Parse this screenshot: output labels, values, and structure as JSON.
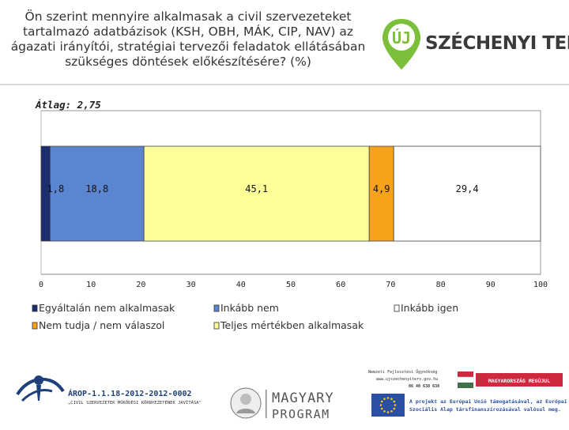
{
  "header": {
    "question": "Ön szerint mennyire alkalmasak a civil szervezeteket tartalmazó adatbázisok (KSH, OBH, MÁK, CIP, NAV) az ágazati irányítói, stratégiai tervezői feladatok ellátásában szükséges döntések előkészítésére? (%)",
    "logo_badge": "ÚJ",
    "logo_text": "SZÉCHENYI TERV"
  },
  "chart_data": {
    "type": "bar",
    "orientation": "horizontal-stacked",
    "average_label": "Átlag: 2,75",
    "x_ticks": [
      "0",
      "10",
      "20",
      "30",
      "40",
      "50",
      "60",
      "70",
      "80",
      "90",
      "100"
    ],
    "xlim": [
      0,
      100
    ],
    "series": [
      {
        "name": "Egyáltalán nem alkalmasak",
        "value": 1.8,
        "label": "1,8",
        "color": "#1a2e6e"
      },
      {
        "name": "Inkább nem",
        "value": 18.8,
        "label": "18,8",
        "color": "#5b86cf"
      },
      {
        "name": "Teljes mértékben alkalmasak",
        "value": 45.1,
        "label": "45,1",
        "color": "#ffff99"
      },
      {
        "name": "Nem tudja / nem válaszol",
        "value": 4.9,
        "label": "4,9",
        "color": "#f7a21b"
      },
      {
        "name": "Inkább igen",
        "value": 29.4,
        "label": "29,4",
        "color": "#ffffff"
      }
    ],
    "legend_placement": "bottom",
    "grid": false
  },
  "footer": {
    "arop_title": "ÁROP-1.1.18-2012-2012-0002",
    "arop_subtitle": "„CIVIL SZERVEZETEK MŰKÖDÉSI KÖRNYEZETÉNEK JAVÍTÁSA\"",
    "magyary_line1": "MAGYARY",
    "magyary_line2": "PROGRAM",
    "nfu_name": "Nemzeti Fejlesztési Ügynökség",
    "nfu_web": "www.ujszechenyiterv.gov.hu",
    "nfu_phone": "06 40 638 638",
    "hungary_label": "MAGYARORSZÁG MEGÚJUL",
    "eu_text_line1": "A projekt az Európai Unió támogatásával, az Európai",
    "eu_text_line2": "Szociális Alap társfinanszírozásával valósul meg."
  }
}
